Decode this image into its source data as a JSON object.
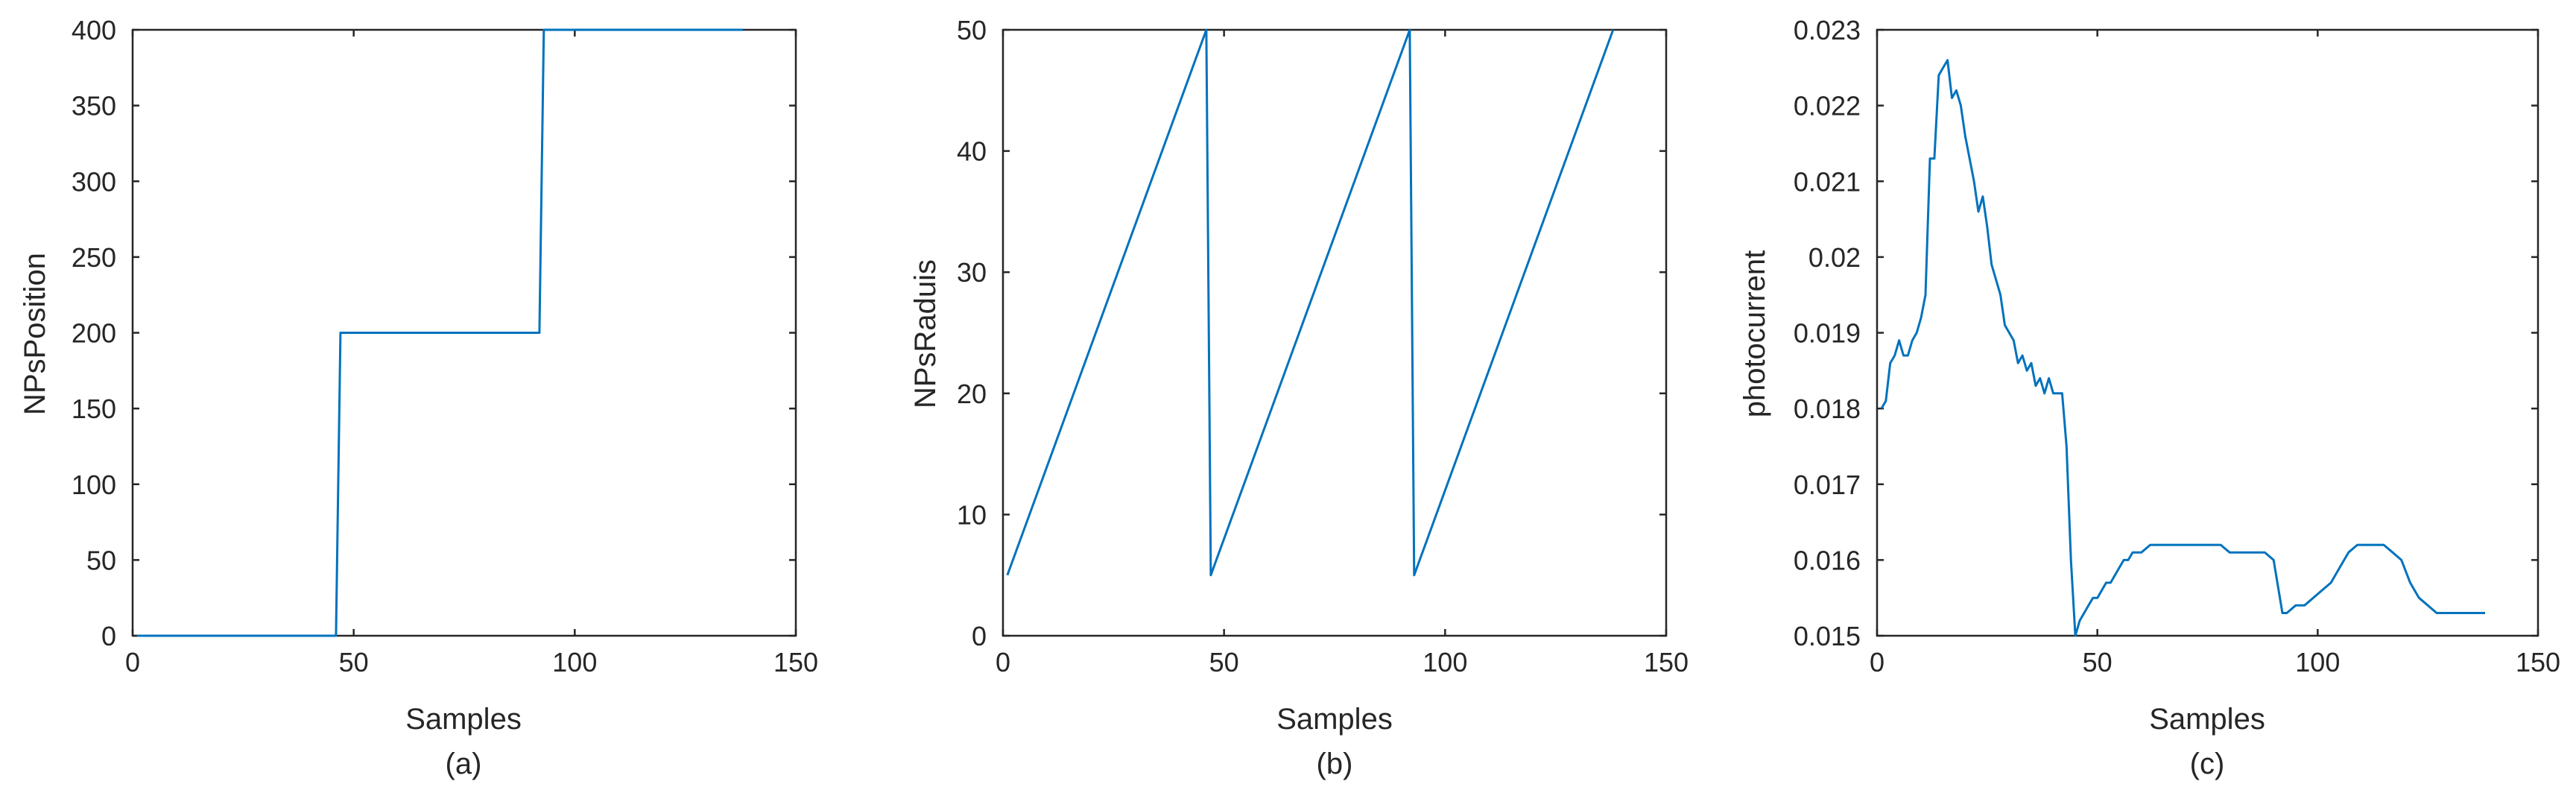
{
  "line_color": "#0072BD",
  "axis_color": "#262626",
  "chart_data": [
    {
      "type": "line",
      "caption": "(a)",
      "xlabel": "Samples",
      "ylabel": "NPsPosition",
      "xlim": [
        0,
        150
      ],
      "ylim": [
        0,
        400
      ],
      "xticks": [
        0,
        50,
        100,
        150
      ],
      "yticks": [
        0,
        50,
        100,
        150,
        200,
        250,
        300,
        350,
        400
      ],
      "grid": false,
      "series": [
        {
          "x": [
            1,
            46,
            47,
            92,
            93,
            138
          ],
          "y": [
            0,
            0,
            200,
            200,
            400,
            400
          ]
        }
      ]
    },
    {
      "type": "line",
      "caption": "(b)",
      "xlabel": "Samples",
      "ylabel": "NPsRaduis",
      "xlim": [
        0,
        150
      ],
      "ylim": [
        0,
        50
      ],
      "xticks": [
        0,
        50,
        100,
        150
      ],
      "yticks": [
        0,
        10,
        20,
        30,
        40,
        50
      ],
      "grid": false,
      "series": [
        {
          "x": [
            1,
            46,
            47,
            92,
            93,
            138
          ],
          "y": [
            5,
            50,
            5,
            50,
            5,
            50
          ]
        }
      ]
    },
    {
      "type": "line",
      "caption": "(c)",
      "xlabel": "Samples",
      "ylabel": "photocurrent",
      "xlim": [
        0,
        150
      ],
      "ylim": [
        0.015,
        0.023
      ],
      "xticks": [
        0,
        50,
        100,
        150
      ],
      "yticks": [
        0.015,
        0.016,
        0.017,
        0.018,
        0.019,
        0.02,
        0.021,
        0.022,
        0.023
      ],
      "ytick_labels": [
        "0.015",
        "0.016",
        "0.017",
        "0.018",
        "0.019",
        "0.02",
        "0.021",
        "0.022",
        "0.023"
      ],
      "grid": false,
      "series": [
        {
          "x": [
            1,
            2,
            3,
            4,
            5,
            6,
            7,
            8,
            9,
            10,
            11,
            12,
            13,
            14,
            15,
            16,
            17,
            18,
            19,
            20,
            21,
            22,
            23,
            24,
            25,
            26,
            27,
            28,
            29,
            30,
            31,
            32,
            33,
            34,
            35,
            36,
            37,
            38,
            39,
            40,
            41,
            42,
            43,
            44,
            45,
            46,
            47,
            48,
            49,
            50,
            51,
            52,
            53,
            54,
            55,
            56,
            57,
            58,
            60,
            62,
            64,
            66,
            68,
            70,
            72,
            74,
            76,
            78,
            80,
            82,
            84,
            86,
            88,
            90,
            92,
            93,
            95,
            97,
            99,
            101,
            103,
            105,
            107,
            109,
            111,
            113,
            115,
            117,
            119,
            121,
            123,
            125,
            127,
            129,
            131,
            133,
            135,
            138
          ],
          "y": [
            0.018,
            0.0181,
            0.0186,
            0.0187,
            0.0189,
            0.0187,
            0.0187,
            0.0189,
            0.019,
            0.0192,
            0.0195,
            0.0213,
            0.0213,
            0.0224,
            0.0225,
            0.0226,
            0.0221,
            0.0222,
            0.022,
            0.0216,
            0.0213,
            0.021,
            0.0206,
            0.0208,
            0.0204,
            0.0199,
            0.0197,
            0.0195,
            0.0191,
            0.019,
            0.0189,
            0.0186,
            0.0187,
            0.0185,
            0.0186,
            0.0183,
            0.0184,
            0.0182,
            0.0184,
            0.0182,
            0.0182,
            0.0182,
            0.0175,
            0.016,
            0.015,
            0.0152,
            0.0153,
            0.0154,
            0.0155,
            0.0155,
            0.0156,
            0.0157,
            0.0157,
            0.0158,
            0.0159,
            0.016,
            0.016,
            0.0161,
            0.0161,
            0.0162,
            0.0162,
            0.0162,
            0.0162,
            0.0162,
            0.0162,
            0.0162,
            0.0162,
            0.0162,
            0.0161,
            0.0161,
            0.0161,
            0.0161,
            0.0161,
            0.016,
            0.0153,
            0.0153,
            0.0154,
            0.0154,
            0.0155,
            0.0156,
            0.0157,
            0.0159,
            0.0161,
            0.0162,
            0.0162,
            0.0162,
            0.0162,
            0.0161,
            0.016,
            0.0157,
            0.0155,
            0.0154,
            0.0153,
            0.0153,
            0.0153,
            0.0153,
            0.0153,
            0.0153
          ]
        }
      ]
    }
  ]
}
